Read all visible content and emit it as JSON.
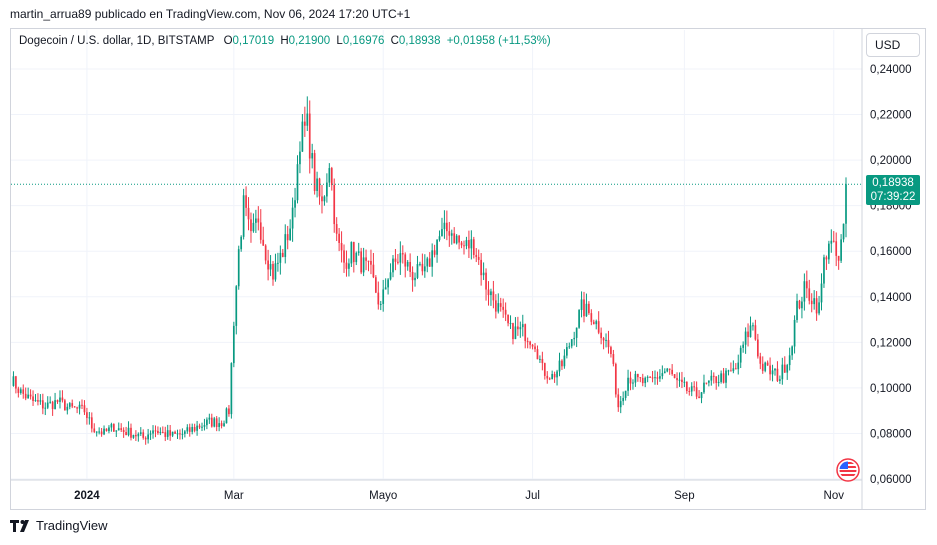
{
  "header": {
    "publisher": "martin_arrua89 publicado en TradingView.com, Nov 06, 2024 17:20 UTC+1"
  },
  "legend": {
    "symbol": "Dogecoin / U.S. dollar, 1D, BITSTAMP",
    "open_label": "O",
    "open": "0,17019",
    "high_label": "H",
    "high": "0,21900",
    "low_label": "L",
    "low": "0,16976",
    "close_label": "C",
    "close": "0,18938",
    "change": "+0,01958 (+11,53%)"
  },
  "currency_button": "USD",
  "last_price": {
    "value": "0,18938",
    "countdown": "07:39:22"
  },
  "footer": {
    "brand": "TradingView"
  },
  "colors": {
    "up": "#089981",
    "down": "#f23645",
    "grid": "#f0f3fa",
    "text": "#131722"
  },
  "chart_data": {
    "type": "candlestick",
    "y_axis_labels": [
      "0,24000",
      "0,22000",
      "0,20000",
      "0,18000",
      "0,16000",
      "0,14000",
      "0,12000",
      "0,10000",
      "0,08000",
      "0,06000"
    ],
    "y_ticks": [
      0.24,
      0.22,
      0.2,
      0.18,
      0.16,
      0.14,
      0.12,
      0.1,
      0.08,
      0.06
    ],
    "ylim": [
      0.06,
      0.24
    ],
    "x_axis_labels": [
      "2024",
      "Mar",
      "Mayo",
      "Jul",
      "Sep",
      "Nov"
    ],
    "x_tick_dates": [
      "2024-01-01",
      "2024-03-01",
      "2024-05-01",
      "2024-07-01",
      "2024-09-01",
      "2024-11-01"
    ],
    "date_range": [
      "2023-12-01",
      "2024-11-06"
    ],
    "last_close": 0.18938,
    "series_close": [
      [
        "2023-12-01",
        0.104
      ],
      [
        "2023-12-05",
        0.098
      ],
      [
        "2023-12-10",
        0.094
      ],
      [
        "2023-12-15",
        0.092
      ],
      [
        "2023-12-20",
        0.094
      ],
      [
        "2023-12-25",
        0.091
      ],
      [
        "2023-12-31",
        0.09
      ],
      [
        "2024-01-03",
        0.083
      ],
      [
        "2024-01-08",
        0.08
      ],
      [
        "2024-01-12",
        0.083
      ],
      [
        "2024-01-16",
        0.081
      ],
      [
        "2024-01-20",
        0.08
      ],
      [
        "2024-01-24",
        0.078
      ],
      [
        "2024-01-28",
        0.082
      ],
      [
        "2024-02-01",
        0.08
      ],
      [
        "2024-02-05",
        0.079
      ],
      [
        "2024-02-10",
        0.08
      ],
      [
        "2024-02-15",
        0.083
      ],
      [
        "2024-02-20",
        0.085
      ],
      [
        "2024-02-25",
        0.085
      ],
      [
        "2024-02-28",
        0.09
      ],
      [
        "2024-03-01",
        0.13
      ],
      [
        "2024-03-03",
        0.16
      ],
      [
        "2024-03-05",
        0.18
      ],
      [
        "2024-03-08",
        0.165
      ],
      [
        "2024-03-11",
        0.175
      ],
      [
        "2024-03-14",
        0.16
      ],
      [
        "2024-03-17",
        0.15
      ],
      [
        "2024-03-21",
        0.16
      ],
      [
        "2024-03-25",
        0.175
      ],
      [
        "2024-03-28",
        0.21
      ],
      [
        "2024-03-31",
        0.215
      ],
      [
        "2024-04-03",
        0.19
      ],
      [
        "2024-04-06",
        0.18
      ],
      [
        "2024-04-09",
        0.2
      ],
      [
        "2024-04-12",
        0.165
      ],
      [
        "2024-04-15",
        0.155
      ],
      [
        "2024-04-18",
        0.16
      ],
      [
        "2024-04-22",
        0.155
      ],
      [
        "2024-04-26",
        0.15
      ],
      [
        "2024-04-30",
        0.135
      ],
      [
        "2024-05-03",
        0.15
      ],
      [
        "2024-05-08",
        0.158
      ],
      [
        "2024-05-13",
        0.15
      ],
      [
        "2024-05-18",
        0.15
      ],
      [
        "2024-05-23",
        0.165
      ],
      [
        "2024-05-28",
        0.17
      ],
      [
        "2024-06-02",
        0.162
      ],
      [
        "2024-06-07",
        0.163
      ],
      [
        "2024-06-12",
        0.145
      ],
      [
        "2024-06-17",
        0.135
      ],
      [
        "2024-06-22",
        0.125
      ],
      [
        "2024-06-27",
        0.125
      ],
      [
        "2024-07-02",
        0.12
      ],
      [
        "2024-07-05",
        0.108
      ],
      [
        "2024-07-09",
        0.105
      ],
      [
        "2024-07-13",
        0.11
      ],
      [
        "2024-07-17",
        0.122
      ],
      [
        "2024-07-21",
        0.135
      ],
      [
        "2024-07-25",
        0.132
      ],
      [
        "2024-07-29",
        0.125
      ],
      [
        "2024-08-02",
        0.115
      ],
      [
        "2024-08-05",
        0.092
      ],
      [
        "2024-08-09",
        0.105
      ],
      [
        "2024-08-13",
        0.103
      ],
      [
        "2024-08-17",
        0.102
      ],
      [
        "2024-08-21",
        0.105
      ],
      [
        "2024-08-25",
        0.108
      ],
      [
        "2024-08-29",
        0.102
      ],
      [
        "2024-09-02",
        0.099
      ],
      [
        "2024-09-06",
        0.097
      ],
      [
        "2024-09-10",
        0.101
      ],
      [
        "2024-09-14",
        0.104
      ],
      [
        "2024-09-18",
        0.105
      ],
      [
        "2024-09-22",
        0.108
      ],
      [
        "2024-09-26",
        0.122
      ],
      [
        "2024-09-29",
        0.128
      ],
      [
        "2024-10-02",
        0.11
      ],
      [
        "2024-10-06",
        0.107
      ],
      [
        "2024-10-10",
        0.105
      ],
      [
        "2024-10-14",
        0.115
      ],
      [
        "2024-10-17",
        0.135
      ],
      [
        "2024-10-20",
        0.143
      ],
      [
        "2024-10-23",
        0.14
      ],
      [
        "2024-10-26",
        0.135
      ],
      [
        "2024-10-28",
        0.155
      ],
      [
        "2024-10-30",
        0.165
      ],
      [
        "2024-11-01",
        0.16
      ],
      [
        "2024-11-03",
        0.155
      ],
      [
        "2024-11-05",
        0.17
      ],
      [
        "2024-11-06",
        0.18938
      ]
    ]
  }
}
